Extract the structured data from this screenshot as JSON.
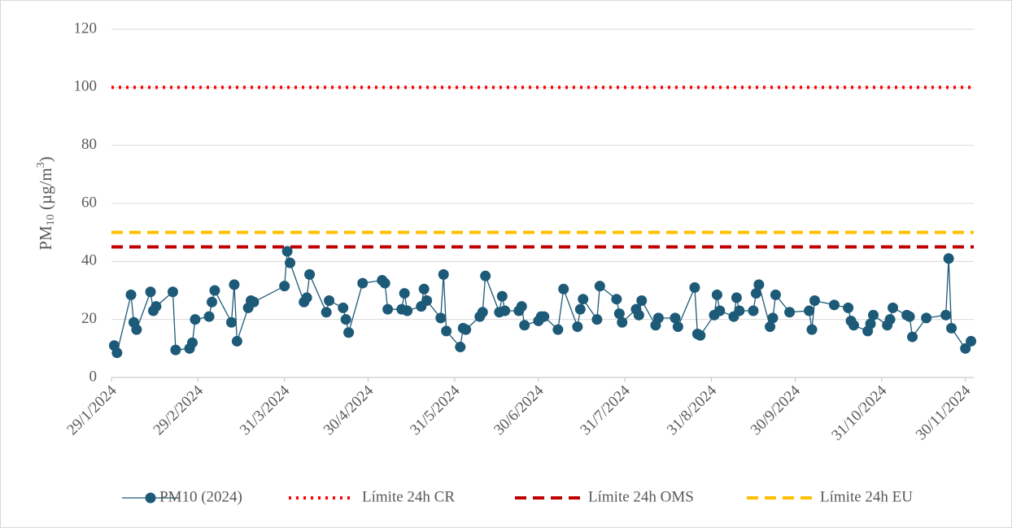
{
  "chart_data": {
    "type": "line",
    "y_label": [
      "PM",
      "10",
      " (µg/m",
      "3",
      ")"
    ],
    "ylim": [
      0,
      120
    ],
    "yticks": [
      0,
      20,
      40,
      60,
      80,
      100,
      120
    ],
    "grid": true,
    "xlim": [
      "2024-01-29",
      "2024-12-03"
    ],
    "xticks": [
      {
        "value": "2024-01-29",
        "label": "29/1/2024"
      },
      {
        "value": "2024-02-29",
        "label": "29/2/2024"
      },
      {
        "value": "2024-03-31",
        "label": "31/3/2024"
      },
      {
        "value": "2024-04-30",
        "label": "30/4/2024"
      },
      {
        "value": "2024-05-31",
        "label": "31/5/2024"
      },
      {
        "value": "2024-06-30",
        "label": "30/6/2024"
      },
      {
        "value": "2024-07-31",
        "label": "31/7/2024"
      },
      {
        "value": "2024-08-31",
        "label": "31/8/2024"
      },
      {
        "value": "2024-09-30",
        "label": "30/9/2024"
      },
      {
        "value": "2024-10-31",
        "label": "31/10/2024"
      },
      {
        "value": "2024-11-30",
        "label": "30/11/2024"
      }
    ],
    "x": [
      "2024-01-30",
      "2024-01-31",
      "2024-02-05",
      "2024-02-06",
      "2024-02-07",
      "2024-02-12",
      "2024-02-13",
      "2024-02-14",
      "2024-02-20",
      "2024-02-21",
      "2024-02-26",
      "2024-02-27",
      "2024-02-28",
      "2024-03-04",
      "2024-03-05",
      "2024-03-06",
      "2024-03-12",
      "2024-03-13",
      "2024-03-14",
      "2024-03-18",
      "2024-03-19",
      "2024-03-20",
      "2024-03-31",
      "2024-04-01",
      "2024-04-02",
      "2024-04-07",
      "2024-04-08",
      "2024-04-09",
      "2024-04-15",
      "2024-04-16",
      "2024-04-21",
      "2024-04-22",
      "2024-04-23",
      "2024-04-28",
      "2024-05-05",
      "2024-05-06",
      "2024-05-07",
      "2024-05-12",
      "2024-05-13",
      "2024-05-14",
      "2024-05-19",
      "2024-05-20",
      "2024-05-21",
      "2024-05-26",
      "2024-05-27",
      "2024-05-28",
      "2024-06-02",
      "2024-06-03",
      "2024-06-04",
      "2024-06-09",
      "2024-06-10",
      "2024-06-11",
      "2024-06-16",
      "2024-06-17",
      "2024-06-18",
      "2024-06-23",
      "2024-06-24",
      "2024-06-25",
      "2024-06-30",
      "2024-07-01",
      "2024-07-02",
      "2024-07-07",
      "2024-07-09",
      "2024-07-14",
      "2024-07-15",
      "2024-07-16",
      "2024-07-21",
      "2024-07-22",
      "2024-07-28",
      "2024-07-29",
      "2024-07-30",
      "2024-08-04",
      "2024-08-05",
      "2024-08-06",
      "2024-08-11",
      "2024-08-12",
      "2024-08-18",
      "2024-08-19",
      "2024-08-25",
      "2024-08-26",
      "2024-08-27",
      "2024-09-01",
      "2024-09-02",
      "2024-09-03",
      "2024-09-08",
      "2024-09-09",
      "2024-09-10",
      "2024-09-15",
      "2024-09-16",
      "2024-09-17",
      "2024-09-21",
      "2024-09-22",
      "2024-09-23",
      "2024-09-28",
      "2024-10-05",
      "2024-10-06",
      "2024-10-07",
      "2024-10-14",
      "2024-10-19",
      "2024-10-20",
      "2024-10-21",
      "2024-10-26",
      "2024-10-27",
      "2024-10-28",
      "2024-11-02",
      "2024-11-03",
      "2024-11-04",
      "2024-11-09",
      "2024-11-10",
      "2024-11-11",
      "2024-11-16",
      "2024-11-23",
      "2024-11-24",
      "2024-11-25",
      "2024-11-30",
      "2024-12-02"
    ],
    "series": [
      {
        "name": "PM10 (2024)",
        "color": "#1d5a78",
        "values": [
          11,
          8.5,
          28.5,
          19,
          16.5,
          29.5,
          23,
          24.5,
          29.5,
          9.5,
          10,
          12,
          20,
          21,
          26,
          30,
          19,
          32,
          12.5,
          24,
          26.5,
          26,
          31.5,
          43.5,
          39.5,
          26,
          27.5,
          35.5,
          22.5,
          26.5,
          24,
          20,
          15.5,
          32.5,
          33.5,
          32.5,
          23.5,
          23.5,
          29,
          23,
          24.5,
          30.5,
          26.5,
          20.5,
          35.5,
          16,
          10.5,
          17,
          16.5,
          21,
          22.5,
          35,
          22.5,
          28,
          23,
          23,
          24.5,
          18,
          19.5,
          21,
          21,
          16.5,
          30.5,
          17.5,
          23.5,
          27,
          20,
          31.5,
          27,
          22,
          19,
          23.5,
          21.5,
          26.5,
          18,
          20.5,
          20.5,
          17.5,
          31,
          15,
          14.5,
          21.5,
          28.5,
          23,
          21,
          27.5,
          23,
          23,
          29,
          32,
          17.5,
          20.5,
          28.5,
          22.5,
          23,
          16.5,
          26.5,
          25,
          24,
          19.5,
          18,
          16,
          18.5,
          21.5,
          18,
          20,
          24,
          21.5,
          21,
          14,
          20.5,
          21.5,
          41,
          17,
          10,
          12.5
        ]
      }
    ],
    "reference_lines": [
      {
        "name": "Límite 24h CR",
        "value": 100,
        "color": "#ff0000",
        "style": "dotted"
      },
      {
        "name": "Límite 24h OMS",
        "value": 45,
        "color": "#c00000",
        "style": "dashed"
      },
      {
        "name": "Límite 24h EU",
        "value": 50,
        "color": "#ffc000",
        "style": "dashed"
      }
    ]
  }
}
